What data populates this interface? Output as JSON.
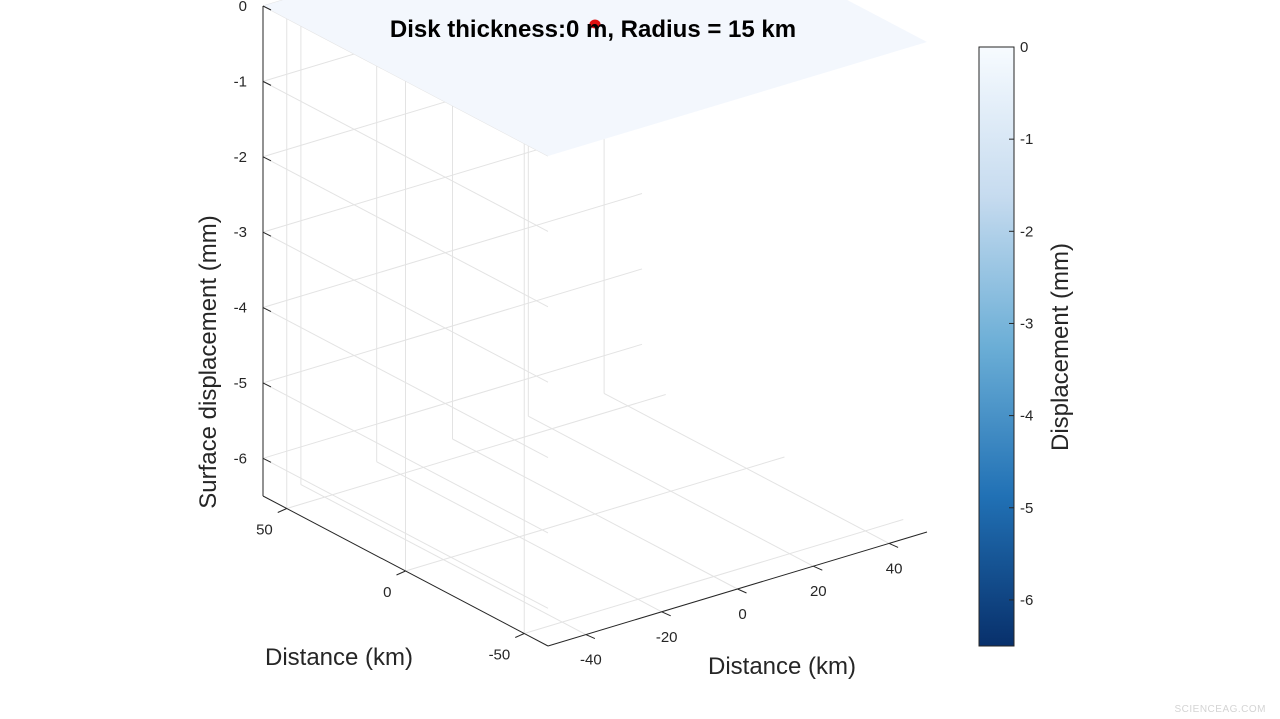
{
  "chart_data": {
    "type": "surface",
    "title": "Disk thickness:0 m, Radius = 15 km",
    "xlabel": "Distance (km)",
    "ylabel": "Distance (km)",
    "zlabel": "Surface displacement (mm)",
    "x_ticks": [
      -40,
      -20,
      0,
      20,
      40
    ],
    "y_ticks": [
      -50,
      0,
      50
    ],
    "z_ticks": [
      0,
      -1,
      -2,
      -3,
      -4,
      -5,
      -6
    ],
    "x_range": [
      -50,
      50
    ],
    "y_range": [
      -60,
      60
    ],
    "z_range": [
      -6.5,
      0
    ],
    "surface": {
      "z_value": 0,
      "color": "#f3f7fd"
    },
    "source_point": {
      "x": 0,
      "y": 0,
      "z": 0,
      "color": "#e01010"
    },
    "grid": true,
    "colorbar": {
      "label": "Displacement (mm)",
      "ticks": [
        0,
        -1,
        -2,
        -3,
        -4,
        -5,
        -6
      ],
      "range": [
        -6.5,
        0
      ],
      "colors": [
        "#08306b",
        "#2171b5",
        "#6baed6",
        "#c6dbef",
        "#f7fbff"
      ]
    }
  },
  "watermark": "SCIENCEAG.COM"
}
